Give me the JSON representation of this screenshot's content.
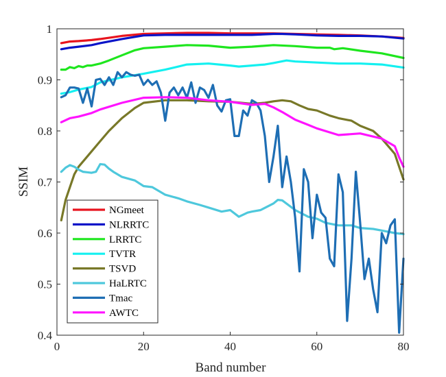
{
  "chart_data": {
    "type": "line",
    "title": "",
    "xlabel": "Band number",
    "ylabel": "SSIM",
    "xlim": [
      0,
      80
    ],
    "ylim": [
      0.4,
      1.0
    ],
    "xticks": [
      0,
      20,
      40,
      60,
      80
    ],
    "yticks": [
      0.4,
      0.5,
      0.6,
      0.7,
      0.8,
      0.9,
      1.0
    ],
    "ytick_labels": [
      "0.4",
      "0.5",
      "0.6",
      "0.7",
      "0.8",
      "0.9",
      "1"
    ],
    "legend_position": "bottom-left",
    "series": [
      {
        "name": "NGmeet",
        "color": "#e8141e",
        "x": [
          1,
          3,
          5,
          8,
          10,
          15,
          20,
          25,
          30,
          35,
          40,
          45,
          50,
          55,
          60,
          65,
          70,
          75,
          80
        ],
        "y": [
          0.972,
          0.975,
          0.976,
          0.978,
          0.98,
          0.986,
          0.99,
          0.991,
          0.992,
          0.992,
          0.991,
          0.991,
          0.991,
          0.99,
          0.989,
          0.988,
          0.987,
          0.985,
          0.982
        ]
      },
      {
        "name": "NLRRTC",
        "color": "#0a14c8",
        "x": [
          1,
          3,
          5,
          8,
          10,
          15,
          20,
          25,
          30,
          35,
          40,
          45,
          50,
          52,
          55,
          60,
          65,
          70,
          75,
          80
        ],
        "y": [
          0.96,
          0.963,
          0.965,
          0.968,
          0.972,
          0.98,
          0.987,
          0.988,
          0.988,
          0.988,
          0.988,
          0.988,
          0.99,
          0.99,
          0.989,
          0.987,
          0.986,
          0.986,
          0.985,
          0.981
        ]
      },
      {
        "name": "LRRTC",
        "color": "#1ee61e",
        "x": [
          1,
          2,
          3,
          4,
          5,
          6,
          7,
          8,
          10,
          12,
          15,
          18,
          20,
          25,
          30,
          35,
          40,
          45,
          50,
          55,
          60,
          63,
          64,
          66,
          70,
          75,
          80
        ],
        "y": [
          0.92,
          0.92,
          0.925,
          0.923,
          0.927,
          0.925,
          0.928,
          0.928,
          0.932,
          0.938,
          0.948,
          0.958,
          0.962,
          0.965,
          0.968,
          0.967,
          0.963,
          0.965,
          0.968,
          0.966,
          0.963,
          0.963,
          0.96,
          0.962,
          0.957,
          0.952,
          0.943
        ]
      },
      {
        "name": "TVTR",
        "color": "#14f0f0",
        "x": [
          1,
          3,
          5,
          8,
          10,
          15,
          20,
          25,
          30,
          35,
          40,
          42,
          45,
          48,
          50,
          53,
          55,
          60,
          65,
          70,
          75,
          80
        ],
        "y": [
          0.873,
          0.876,
          0.881,
          0.886,
          0.895,
          0.905,
          0.912,
          0.92,
          0.93,
          0.932,
          0.928,
          0.926,
          0.928,
          0.93,
          0.933,
          0.938,
          0.936,
          0.934,
          0.932,
          0.932,
          0.93,
          0.924
        ]
      },
      {
        "name": "TSVD",
        "color": "#787828",
        "x": [
          1,
          2,
          3,
          4,
          5,
          7,
          10,
          12,
          15,
          18,
          20,
          25,
          30,
          35,
          40,
          45,
          48,
          50,
          52,
          54,
          56,
          58,
          60,
          63,
          65,
          68,
          70,
          73,
          75,
          77,
          78,
          79,
          80
        ],
        "y": [
          0.625,
          0.665,
          0.69,
          0.715,
          0.73,
          0.75,
          0.78,
          0.8,
          0.825,
          0.845,
          0.855,
          0.86,
          0.86,
          0.858,
          0.857,
          0.853,
          0.855,
          0.858,
          0.86,
          0.858,
          0.85,
          0.843,
          0.84,
          0.83,
          0.825,
          0.82,
          0.81,
          0.8,
          0.785,
          0.765,
          0.755,
          0.73,
          0.705
        ]
      },
      {
        "name": "HaLRTC",
        "color": "#4ec8dc",
        "x": [
          1,
          2,
          3,
          4,
          5,
          6,
          8,
          9,
          10,
          11,
          12,
          13,
          15,
          18,
          20,
          22,
          25,
          28,
          30,
          33,
          35,
          38,
          40,
          42,
          44,
          45,
          47,
          50,
          51,
          52,
          55,
          58,
          60,
          62,
          65,
          68,
          70,
          73,
          75,
          78,
          80
        ],
        "y": [
          0.72,
          0.728,
          0.733,
          0.73,
          0.724,
          0.72,
          0.718,
          0.72,
          0.735,
          0.734,
          0.726,
          0.72,
          0.71,
          0.703,
          0.692,
          0.69,
          0.675,
          0.668,
          0.662,
          0.655,
          0.65,
          0.642,
          0.645,
          0.632,
          0.64,
          0.642,
          0.645,
          0.658,
          0.665,
          0.664,
          0.645,
          0.632,
          0.628,
          0.62,
          0.615,
          0.615,
          0.61,
          0.608,
          0.605,
          0.6,
          0.598
        ]
      },
      {
        "name": "Tmac",
        "color": "#1e6eb4",
        "x": [
          1,
          2,
          3,
          4,
          5,
          6,
          7,
          8,
          9,
          10,
          11,
          12,
          13,
          14,
          15,
          16,
          17,
          18,
          19,
          20,
          21,
          22,
          23,
          24,
          25,
          26,
          27,
          28,
          29,
          30,
          31,
          32,
          33,
          34,
          35,
          36,
          37,
          38,
          39,
          40,
          41,
          42,
          43,
          44,
          45,
          46,
          47,
          48,
          49,
          50,
          51,
          52,
          53,
          54,
          55,
          56,
          57,
          58,
          59,
          60,
          61,
          62,
          63,
          64,
          65,
          66,
          67,
          68,
          69,
          70,
          71,
          72,
          73,
          74,
          75,
          76,
          77,
          78,
          79,
          80
        ],
        "y": [
          0.866,
          0.87,
          0.885,
          0.885,
          0.883,
          0.855,
          0.883,
          0.848,
          0.9,
          0.902,
          0.89,
          0.905,
          0.89,
          0.915,
          0.905,
          0.915,
          0.91,
          0.908,
          0.91,
          0.89,
          0.9,
          0.89,
          0.897,
          0.875,
          0.82,
          0.875,
          0.885,
          0.87,
          0.885,
          0.865,
          0.895,
          0.855,
          0.885,
          0.88,
          0.865,
          0.89,
          0.85,
          0.838,
          0.86,
          0.862,
          0.79,
          0.79,
          0.84,
          0.83,
          0.86,
          0.855,
          0.84,
          0.79,
          0.7,
          0.75,
          0.81,
          0.69,
          0.75,
          0.7,
          0.63,
          0.525,
          0.725,
          0.7,
          0.59,
          0.675,
          0.64,
          0.63,
          0.55,
          0.535,
          0.715,
          0.68,
          0.428,
          0.55,
          0.72,
          0.62,
          0.51,
          0.55,
          0.49,
          0.445,
          0.6,
          0.58,
          0.615,
          0.627,
          0.405,
          0.55
        ]
      },
      {
        "name": "AWTC",
        "color": "#ff14ff",
        "x": [
          1,
          3,
          5,
          8,
          10,
          15,
          20,
          25,
          30,
          35,
          40,
          45,
          48,
          50,
          52,
          55,
          58,
          60,
          65,
          70,
          75,
          78,
          79,
          80
        ],
        "y": [
          0.817,
          0.825,
          0.828,
          0.835,
          0.842,
          0.855,
          0.865,
          0.866,
          0.865,
          0.86,
          0.857,
          0.851,
          0.853,
          0.846,
          0.837,
          0.822,
          0.812,
          0.805,
          0.792,
          0.795,
          0.785,
          0.77,
          0.748,
          0.73
        ]
      }
    ]
  }
}
